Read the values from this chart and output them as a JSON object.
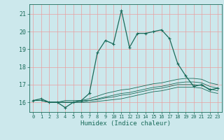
{
  "title": "",
  "xlabel": "Humidex (Indice chaleur)",
  "background_color": "#cce8ec",
  "grid_color": "#e8a0a0",
  "line_color": "#1a6b5a",
  "x_ticks": [
    0,
    1,
    2,
    3,
    4,
    5,
    6,
    7,
    8,
    9,
    10,
    11,
    12,
    13,
    14,
    15,
    16,
    17,
    18,
    19,
    20,
    21,
    22,
    23
  ],
  "y_ticks": [
    16,
    17,
    18,
    19,
    20,
    21
  ],
  "ylim": [
    15.45,
    21.55
  ],
  "xlim": [
    -0.5,
    23.5
  ],
  "series": [
    [
      16.1,
      16.2,
      16.0,
      16.0,
      15.7,
      16.0,
      16.1,
      16.5,
      18.8,
      19.5,
      19.3,
      21.2,
      19.1,
      19.9,
      19.9,
      20.0,
      20.1,
      19.6,
      18.2,
      17.5,
      16.9,
      17.0,
      16.7,
      16.8
    ],
    [
      16.1,
      16.1,
      16.0,
      16.0,
      16.1,
      16.1,
      16.1,
      16.2,
      16.35,
      16.5,
      16.6,
      16.7,
      16.75,
      16.85,
      16.95,
      17.05,
      17.1,
      17.2,
      17.3,
      17.35,
      17.35,
      17.3,
      17.1,
      17.0
    ],
    [
      16.1,
      16.1,
      16.0,
      16.0,
      16.0,
      16.0,
      16.1,
      16.1,
      16.2,
      16.3,
      16.4,
      16.5,
      16.55,
      16.65,
      16.75,
      16.85,
      16.9,
      17.0,
      17.1,
      17.15,
      17.15,
      17.1,
      16.9,
      16.8
    ],
    [
      16.1,
      16.1,
      16.0,
      16.0,
      16.0,
      16.0,
      16.0,
      16.1,
      16.15,
      16.25,
      16.3,
      16.4,
      16.45,
      16.55,
      16.65,
      16.75,
      16.8,
      16.9,
      17.0,
      17.0,
      17.0,
      16.95,
      16.75,
      16.65
    ],
    [
      16.1,
      16.1,
      16.0,
      16.0,
      16.0,
      16.0,
      16.0,
      16.0,
      16.05,
      16.1,
      16.15,
      16.2,
      16.3,
      16.4,
      16.5,
      16.6,
      16.65,
      16.75,
      16.85,
      16.85,
      16.85,
      16.8,
      16.6,
      16.5
    ]
  ]
}
